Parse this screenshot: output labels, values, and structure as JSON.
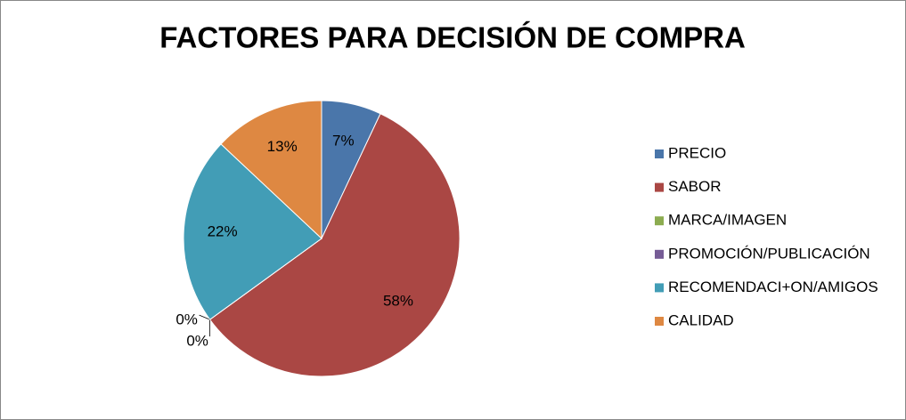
{
  "chart_data": {
    "type": "pie",
    "title": "FACTORES PARA DECISIÓN DE COMPRA",
    "categories": [
      "PRECIO",
      "SABOR",
      "MARCA/IMAGEN",
      "PROMOCIÓN/PUBLICACIÓN",
      "RECOMENDACI+ON/AMIGOS",
      "CALIDAD"
    ],
    "values": [
      7,
      58,
      0,
      0,
      22,
      13
    ],
    "value_labels": [
      "7%",
      "58%",
      "0%",
      "0%",
      "22%",
      "13%"
    ],
    "colors": [
      "#4a76aa",
      "#aa4744",
      "#8cac50",
      "#765c96",
      "#429db6",
      "#de8842"
    ],
    "legend": "right"
  }
}
